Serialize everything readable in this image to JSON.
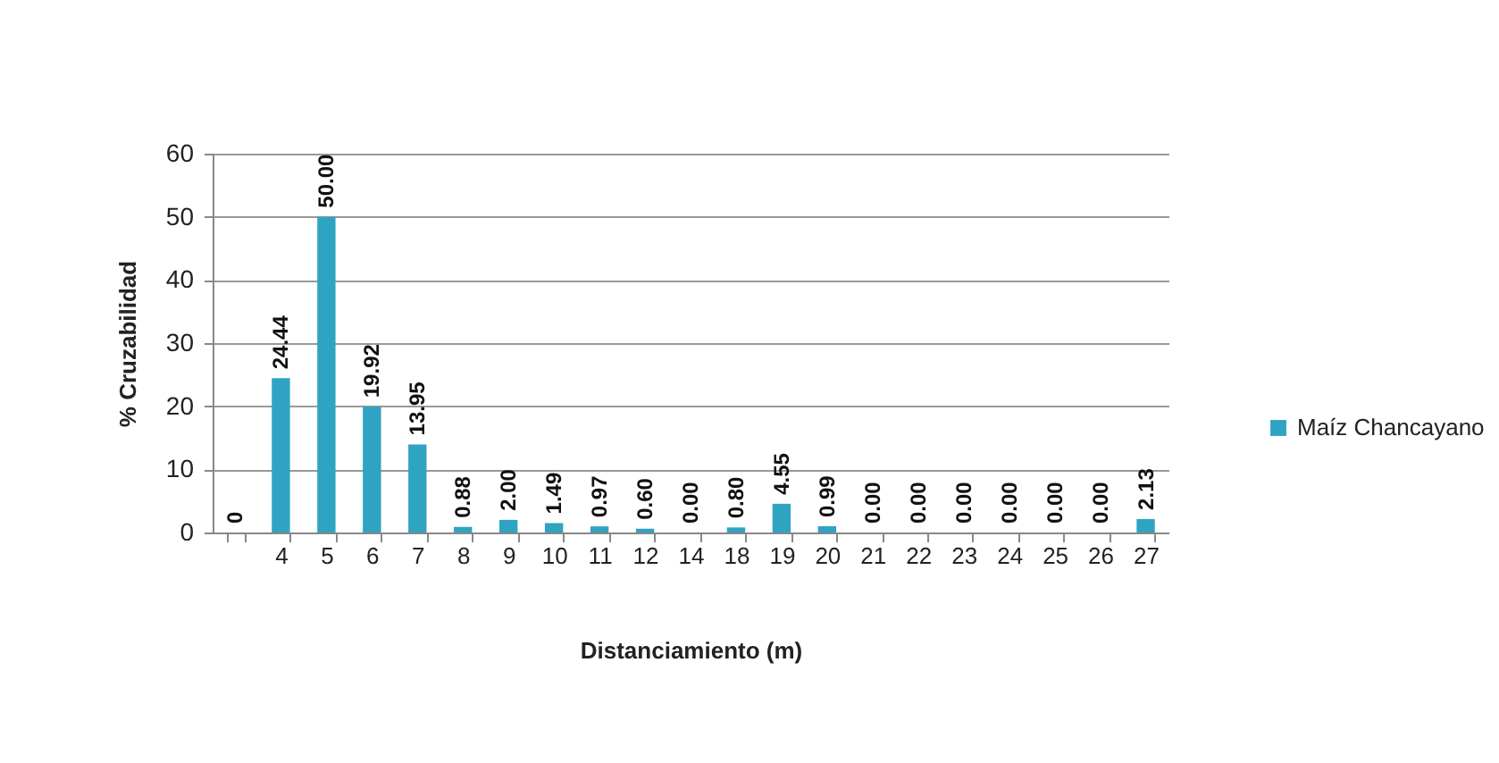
{
  "chart_data": {
    "type": "bar",
    "xlabel": "Distanciamiento (m)",
    "ylabel": "% Cruzabilidad",
    "categories": [
      null,
      "4",
      "5",
      "6",
      "7",
      "8",
      "9",
      "10",
      "11",
      "12",
      "14",
      "18",
      "19",
      "20",
      "21",
      "22",
      "23",
      "24",
      "25",
      "26",
      "27"
    ],
    "series": [
      {
        "name": "Maíz Chancayano",
        "color": "#2fa3c2",
        "values": [
          0,
          24.44,
          50.0,
          19.92,
          13.95,
          0.88,
          2.0,
          1.49,
          0.97,
          0.6,
          0.0,
          0.8,
          4.55,
          0.99,
          0.0,
          0.0,
          0.0,
          0.0,
          0.0,
          0.0,
          2.13
        ],
        "value_labels": [
          "0",
          "24.44",
          "50.00",
          "19.92",
          "13.95",
          "0.88",
          "2.00",
          "1.49",
          "0.97",
          "0.60",
          "0.00",
          "0.80",
          "4.55",
          "0.99",
          "0.00",
          "0.00",
          "0.00",
          "0.00",
          "0.00",
          "0.00",
          "2.13"
        ]
      }
    ],
    "ylim": [
      0,
      60
    ],
    "yticks": [
      0,
      10,
      20,
      30,
      40,
      50,
      60
    ],
    "grid": "y",
    "legend": "right"
  }
}
